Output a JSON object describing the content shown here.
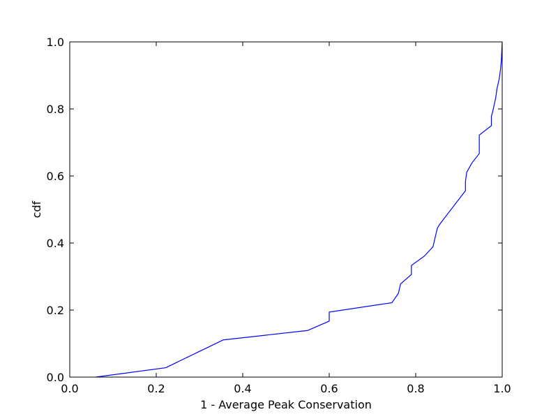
{
  "chart_data": {
    "type": "line",
    "xlabel": "1 - Average Peak Conservation",
    "ylabel": "cdf",
    "xlim": [
      0.0,
      1.0
    ],
    "ylim": [
      0.0,
      1.0
    ],
    "xticks": [
      "0.0",
      "0.2",
      "0.4",
      "0.6",
      "0.8",
      "1.0"
    ],
    "yticks": [
      "0.0",
      "0.2",
      "0.4",
      "0.6",
      "0.8",
      "1.0"
    ],
    "grid": false,
    "series": [
      {
        "color": "#0000ff",
        "x": [
          0.06,
          0.222,
          0.31,
          0.355,
          0.55,
          0.6,
          0.6,
          0.745,
          0.76,
          0.765,
          0.79,
          0.79,
          0.82,
          0.84,
          0.845,
          0.85,
          0.855,
          0.865,
          0.915,
          0.915,
          0.918,
          0.93,
          0.947,
          0.947,
          0.975,
          0.975,
          0.978,
          0.985,
          0.988,
          0.993,
          0.996,
          0.998,
          0.999,
          1.0
        ],
        "y": [
          0.0,
          0.028,
          0.083,
          0.111,
          0.139,
          0.167,
          0.194,
          0.222,
          0.25,
          0.278,
          0.306,
          0.333,
          0.361,
          0.389,
          0.417,
          0.444,
          0.455,
          0.472,
          0.556,
          0.583,
          0.611,
          0.639,
          0.667,
          0.722,
          0.75,
          0.778,
          0.792,
          0.833,
          0.861,
          0.889,
          0.917,
          0.944,
          0.972,
          1.0
        ]
      }
    ]
  }
}
